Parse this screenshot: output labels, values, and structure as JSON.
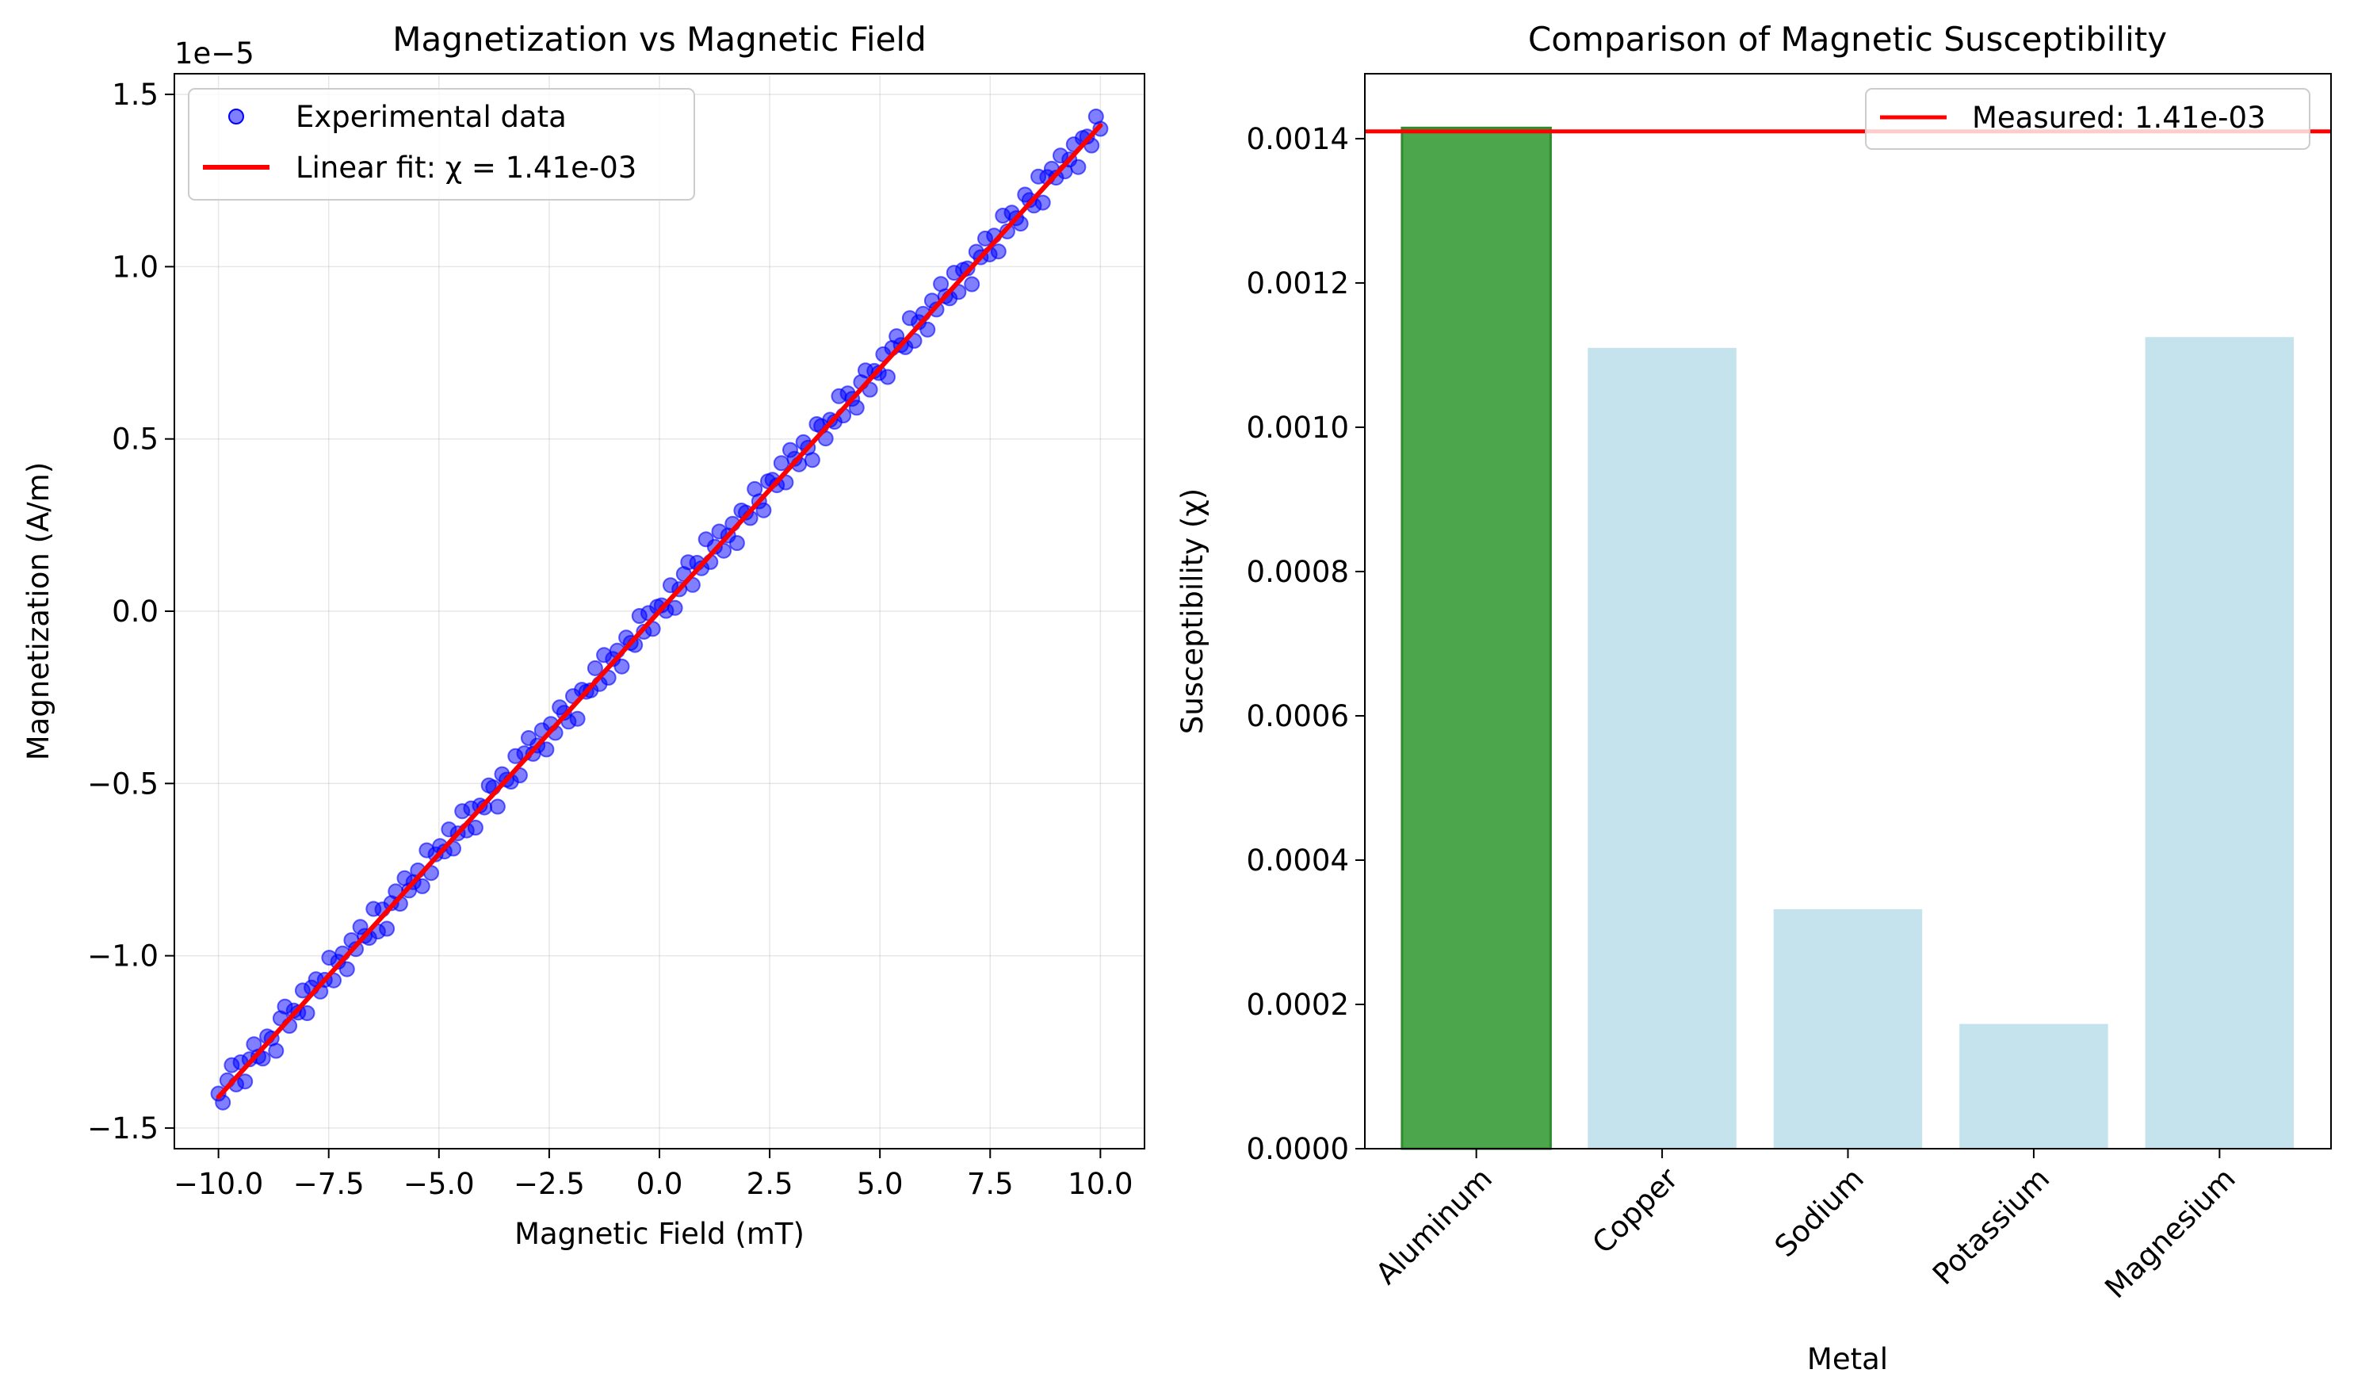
{
  "chart_data": [
    {
      "type": "scatter",
      "title": "Magnetization vs Magnetic Field",
      "xlabel": "Magnetic Field (mT)",
      "ylabel": "Magnetization (A/m)",
      "offset_label": "1e−5",
      "xlim": [
        -11,
        11
      ],
      "ylim": [
        -1.56,
        1.56
      ],
      "x_ticks": [
        -10.0,
        -7.5,
        -5.0,
        -2.5,
        0.0,
        2.5,
        5.0,
        7.5,
        10.0
      ],
      "x_tick_labels": [
        "−10.0",
        "−7.5",
        "−5.0",
        "−2.5",
        "0.0",
        "2.5",
        "5.0",
        "7.5",
        "10.0"
      ],
      "y_ticks": [
        -1.5,
        -1.0,
        -0.5,
        0.0,
        0.5,
        1.0,
        1.5
      ],
      "y_tick_labels": [
        "−1.5",
        "−1.0",
        "−0.5",
        "0.0",
        "0.5",
        "1.0",
        "1.5"
      ],
      "grid": true,
      "legend_position": "upper-left",
      "series": [
        {
          "name": "Experimental data",
          "kind": "scatter",
          "color": "#0000ff",
          "x_range": [
            -10,
            10
          ],
          "n_points": 200,
          "slope": 0.141,
          "y_residuals": [
            0.01,
            -0.03,
            0.02,
            0.05,
            -0.02,
            0.03,
            -0.04,
            0.01,
            0.04,
            -0.01,
            -0.03,
            0.02,
            0.0,
            -0.05,
            0.03,
            0.05,
            -0.02,
            0.01,
            -0.01,
            0.04,
            -0.04,
            0.02,
            0.03,
            -0.02,
            0.0,
            0.05,
            -0.03,
            0.01,
            0.02,
            -0.04,
            0.03,
            -0.01,
            0.04,
            0.0,
            -0.02,
            0.05,
            -0.03,
            0.02,
            -0.05,
            0.01,
            0.03,
            -0.02,
            0.04,
            -0.01,
            0.0,
            0.02,
            -0.04,
            0.05,
            -0.03,
            0.01,
            0.02,
            -0.01,
            0.04,
            -0.03,
            0.0,
            0.05,
            -0.02,
            0.03,
            -0.04,
            0.01,
            -0.01,
            0.04,
            0.02,
            -0.05,
            0.03,
            0.0,
            -0.02,
            0.04,
            -0.03,
            0.02,
            0.05,
            -0.01,
            0.0,
            0.03,
            -0.04,
            0.02,
            -0.02,
            0.04,
            0.01,
            -0.03,
            0.03,
            -0.05,
            0.02,
            0.0,
            -0.01,
            0.04,
            -0.02,
            0.05,
            -0.03,
            0.01,
            0.02,
            -0.04,
            0.03,
            0.0,
            -0.02,
            0.05,
            -0.01,
            0.03,
            -0.03,
            0.02,
            0.01,
            -0.02,
            0.04,
            -0.04,
            0.0,
            0.03,
            0.05,
            -0.03,
            0.02,
            -0.01,
            0.06,
            -0.02,
            0.01,
            0.04,
            -0.03,
            0.0,
            0.02,
            -0.05,
            0.03,
            0.01,
            -0.02,
            0.05,
            0.0,
            -0.04,
            0.03,
            0.02,
            -0.01,
            0.04,
            -0.03,
            0.05,
            0.01,
            -0.02,
            0.03,
            0.0,
            -0.05,
            0.04,
            0.02,
            -0.03,
            0.01,
            -0.01,
            0.05,
            -0.02,
            0.03,
            0.0,
            -0.04,
            0.02,
            0.04,
            -0.03,
            0.01,
            -0.01,
            0.03,
            -0.05,
            0.02,
            0.04,
            0.0,
            -0.02,
            0.05,
            -0.03,
            0.01,
            0.02,
            -0.04,
            0.03,
            -0.01,
            0.05,
            0.0,
            -0.02,
            0.04,
            -0.03,
            0.02,
            0.01,
            -0.05,
            0.03,
            0.0,
            0.04,
            -0.02,
            0.02,
            -0.04,
            0.05,
            -0.01,
            0.03,
            0.0,
            -0.03,
            0.04,
            0.01,
            -0.02,
            0.05,
            -0.04,
            0.02,
            0.03,
            -0.01,
            0.04,
            -0.02,
            0.0,
            0.03,
            -0.05,
            0.02,
            0.01,
            -0.03,
            0.04,
            -0.01
          ]
        },
        {
          "name": "Linear fit: χ = 1.41e-03",
          "kind": "line",
          "color": "#ff0000",
          "x": [
            -10,
            10
          ],
          "y": [
            -1.41,
            1.41
          ]
        }
      ]
    },
    {
      "type": "bar",
      "title": "Comparison of Magnetic Susceptibility",
      "xlabel": "Metal",
      "ylabel": "Susceptibility (χ)",
      "categories": [
        "Aluminum",
        "Copper",
        "Sodium",
        "Potassium",
        "Magnesium"
      ],
      "values": [
        0.001415,
        0.00111,
        0.000332,
        0.000173,
        0.001125
      ],
      "bar_colors": [
        "#4ca64c",
        "#c5e3ec",
        "#c5e3ec",
        "#c5e3ec",
        "#c5e3ec"
      ],
      "ylim": [
        0,
        0.00149
      ],
      "y_ticks": [
        0,
        0.0002,
        0.0004,
        0.0006,
        0.0008,
        0.001,
        0.0012,
        0.0014
      ],
      "y_tick_labels": [
        "0.0000",
        "0.0002",
        "0.0004",
        "0.0006",
        "0.0008",
        "0.0010",
        "0.0012",
        "0.0014"
      ],
      "grid": false,
      "legend_position": "upper-right",
      "reference_line": {
        "name": "Measured: 1.41e-03",
        "value": 0.00141,
        "color": "#ff0000"
      }
    }
  ]
}
